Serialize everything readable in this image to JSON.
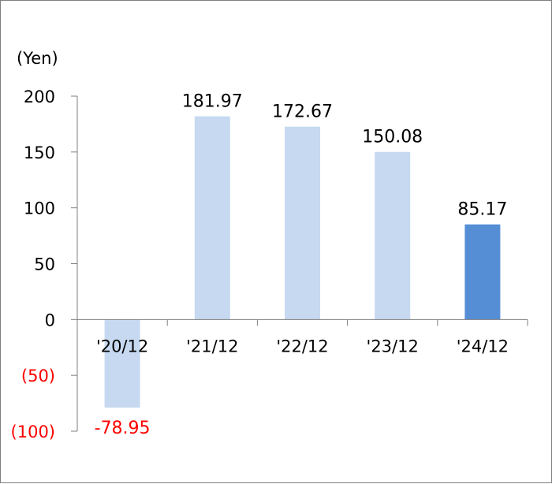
{
  "chart_data": {
    "type": "bar",
    "unit_label": "(Yen)",
    "categories": [
      "'20/12",
      "'21/12",
      "'22/12",
      "'23/12",
      "'24/12"
    ],
    "values": [
      -78.95,
      181.97,
      172.67,
      150.08,
      85.17
    ],
    "value_labels": [
      "-78.95",
      "181.97",
      "172.67",
      "150.08",
      "85.17"
    ],
    "ylim": [
      -100,
      200
    ],
    "y_ticks": [
      200,
      150,
      100,
      50,
      0,
      -50,
      -100
    ],
    "y_tick_labels": [
      "200",
      "150",
      "100",
      "50",
      "0",
      "(50)",
      "(100)"
    ],
    "grid": false,
    "colors": {
      "bar": "#c6d9f1",
      "bar_highlight": "#558ed5",
      "negative_text": "#ff0000",
      "text": "#000000",
      "axis": "#7f7f7f"
    },
    "highlight_index": 4
  }
}
